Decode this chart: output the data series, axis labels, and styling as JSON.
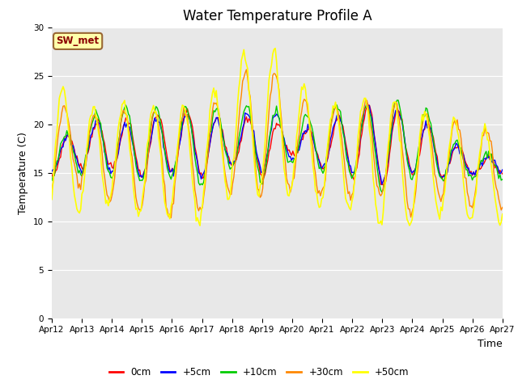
{
  "title": "Water Temperature Profile A",
  "xlabel": "Time",
  "ylabel": "Temperature (C)",
  "ylim": [
    0,
    30
  ],
  "yticks": [
    0,
    5,
    10,
    15,
    20,
    25,
    30
  ],
  "date_labels": [
    "Apr 12",
    "Apr 13",
    "Apr 14",
    "Apr 15",
    "Apr 16",
    "Apr 17",
    "Apr 18",
    "Apr 19",
    "Apr 20",
    "Apr 21",
    "Apr 22",
    "Apr 23",
    "Apr 24",
    "Apr 25",
    "Apr 26",
    "Apr 27"
  ],
  "legend_label": "SW_met",
  "series_colors": {
    "0cm": "#ff0000",
    "+5cm": "#0000ff",
    "+10cm": "#00cc00",
    "+30cm": "#ff8800",
    "+50cm": "#ffff00"
  },
  "bg_color": "#e8e8e8",
  "fig_bg": "#ffffff",
  "title_fontsize": 12,
  "axis_label_fontsize": 9,
  "tick_fontsize": 7.5
}
